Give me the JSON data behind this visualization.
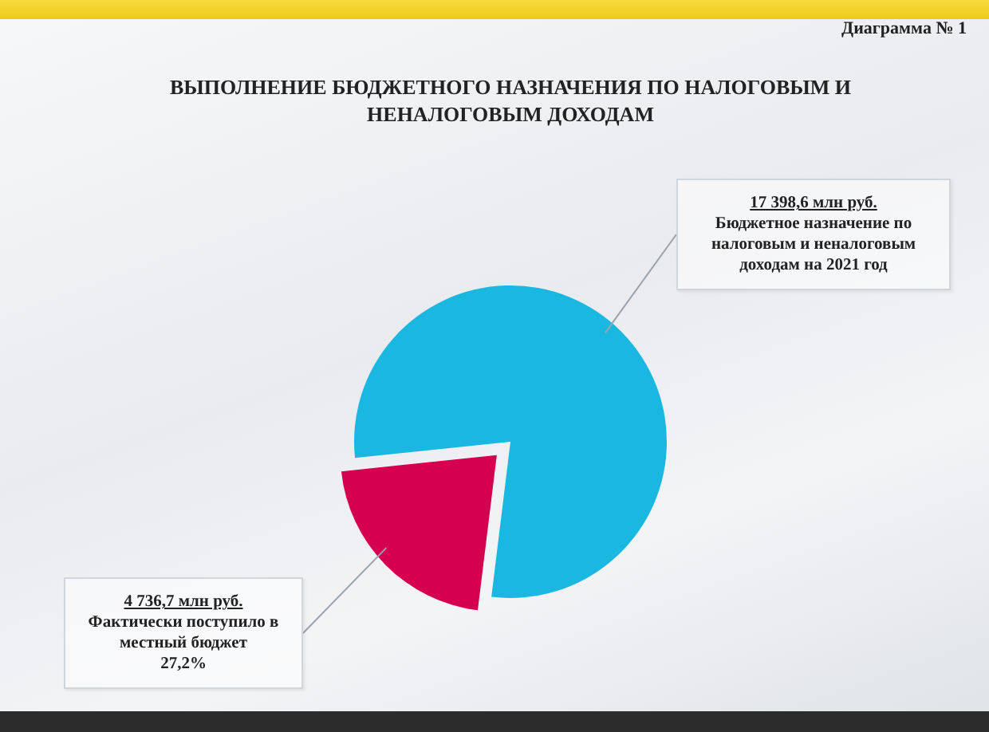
{
  "chart_data": {
    "type": "pie",
    "title": "ВЫПОЛНЕНИЕ БЮДЖЕТНОГО НАЗНАЧЕНИЯ ПО НАЛОГОВЫМ И НЕНАЛОГОВЫМ ДОХОДАМ",
    "subtitle": "Диаграмма № 1",
    "categories": [
      "Бюджетное назначение по налоговым и неналоговым доходам на 2021 год",
      "Фактически поступило в местный бюджет"
    ],
    "values": [
      17398.6,
      4736.7
    ],
    "colors": [
      "#1ab8e0",
      "#d5004f"
    ],
    "value_labels": [
      "17 398,6 млн руб.",
      "4 736,7 млн руб."
    ],
    "annotations": [
      "27,2%"
    ]
  }
}
